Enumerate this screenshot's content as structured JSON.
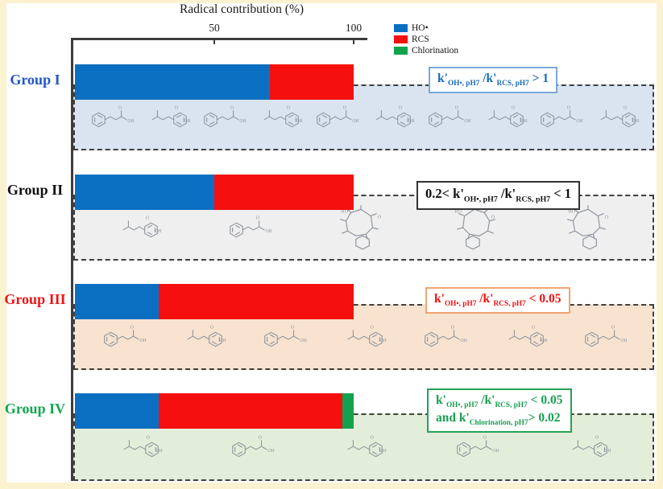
{
  "title": "Radical contribution (%)",
  "axis": {
    "ticks": [
      {
        "label": "50"
      },
      {
        "label": "100"
      }
    ]
  },
  "legend": [
    {
      "label": "HO•",
      "color": "#0b6fc1"
    },
    {
      "label": "RCS",
      "color": "#f50f0f"
    },
    {
      "label": "Chlorination",
      "color": "#12a24d"
    }
  ],
  "series_colors": {
    "HO•": "#0b6fc1",
    "RCS": "#f50f0f",
    "Chlorination": "#12a24d"
  },
  "groups": [
    {
      "label": "Group I",
      "label_color": "#2257c4",
      "panel_color": "#dae4f1",
      "segments": [
        {
          "series": "HO•",
          "pct": 70
        },
        {
          "series": "RCS",
          "pct": 30
        }
      ],
      "annotation": {
        "text_color": "#176ab5",
        "border_color": "#7aa7d9",
        "lines": [
          [
            {
              "t": "k'"
            },
            {
              "t": "OH•, pH7",
              "sub": true
            },
            {
              "t": " /k'"
            },
            {
              "t": "RCS, pH7",
              "sub": true
            },
            {
              "t": " > 1"
            }
          ]
        ]
      },
      "molecules": [
        "simple",
        "simple",
        "simple",
        "simple",
        "simple",
        "simple",
        "simple",
        "simple",
        "simple",
        "simple"
      ]
    },
    {
      "label": "Group II",
      "label_color": "#101010",
      "panel_color": "#efefef",
      "segments": [
        {
          "series": "HO•",
          "pct": 50
        },
        {
          "series": "RCS",
          "pct": 50
        }
      ],
      "annotation": {
        "text_color": "#101010",
        "border_color": "#333333",
        "lines": [
          [
            {
              "t": "0.2< k'"
            },
            {
              "t": "OH•, pH7",
              "sub": true
            },
            {
              "t": " /k'"
            },
            {
              "t": "RCS, pH7",
              "sub": true
            },
            {
              "t": " < 1"
            }
          ]
        ]
      },
      "molecules": [
        "simple",
        "simple",
        "complex",
        "complex",
        "complex"
      ]
    },
    {
      "label": "Group III",
      "label_color": "#f01414",
      "panel_color": "#f8e3d0",
      "segments": [
        {
          "series": "HO•",
          "pct": 30
        },
        {
          "series": "RCS",
          "pct": 70
        }
      ],
      "annotation": {
        "text_color": "#f01010",
        "border_color": "#f0a573",
        "lines": [
          [
            {
              "t": "k'"
            },
            {
              "t": "OH•, pH7",
              "sub": true
            },
            {
              "t": " /k'"
            },
            {
              "t": "RCS, pH7",
              "sub": true
            },
            {
              "t": " < 0.05"
            }
          ]
        ]
      },
      "molecules": [
        "simple",
        "simple",
        "simple",
        "simple",
        "simple",
        "simple",
        "simple"
      ]
    },
    {
      "label": "Group IV",
      "label_color": "#11a84e",
      "panel_color": "#e3eeda",
      "segments": [
        {
          "series": "HO•",
          "pct": 30
        },
        {
          "series": "RCS",
          "pct": 66
        },
        {
          "series": "Chlorination",
          "pct": 4
        }
      ],
      "annotation": {
        "text_color": "#16a04f",
        "border_color": "#25a355",
        "lines": [
          [
            {
              "t": "k'"
            },
            {
              "t": "OH•, pH7",
              "sub": true
            },
            {
              "t": " /k'"
            },
            {
              "t": "RCS, pH7",
              "sub": true
            },
            {
              "t": " < 0.05"
            }
          ],
          [
            {
              "t": "and k'"
            },
            {
              "t": "Chlorination, pH7",
              "sub": true
            },
            {
              "t": "> 0.02"
            }
          ]
        ]
      },
      "molecules": [
        "simple",
        "simple",
        "simple",
        "simple",
        "simple"
      ]
    }
  ],
  "chart_data": {
    "type": "bar",
    "orientation": "horizontal-stacked",
    "title": "Radical contribution (%)",
    "categories": [
      "Group I",
      "Group II",
      "Group III",
      "Group IV"
    ],
    "series": [
      {
        "name": "HO•",
        "color": "#0b6fc1",
        "values": [
          70,
          50,
          30,
          30
        ]
      },
      {
        "name": "RCS",
        "color": "#f50f0f",
        "values": [
          30,
          50,
          70,
          66
        ]
      },
      {
        "name": "Chlorination",
        "color": "#12a24d",
        "values": [
          0,
          0,
          0,
          4
        ]
      }
    ],
    "xlabel": "Radical contribution (%)",
    "xlim": [
      0,
      100
    ],
    "xticks": [
      50,
      100
    ],
    "grid": false,
    "legend_position": "top-right",
    "annotations": [
      "k'OH•, pH7 /k'RCS, pH7 > 1",
      "0.2< k'OH•, pH7 /k'RCS, pH7 < 1",
      "k'OH•, pH7 /k'RCS, pH7 < 0.05",
      "k'OH•, pH7 /k'RCS, pH7 < 0.05 and k'Chlorination, pH7 > 0.02"
    ]
  }
}
